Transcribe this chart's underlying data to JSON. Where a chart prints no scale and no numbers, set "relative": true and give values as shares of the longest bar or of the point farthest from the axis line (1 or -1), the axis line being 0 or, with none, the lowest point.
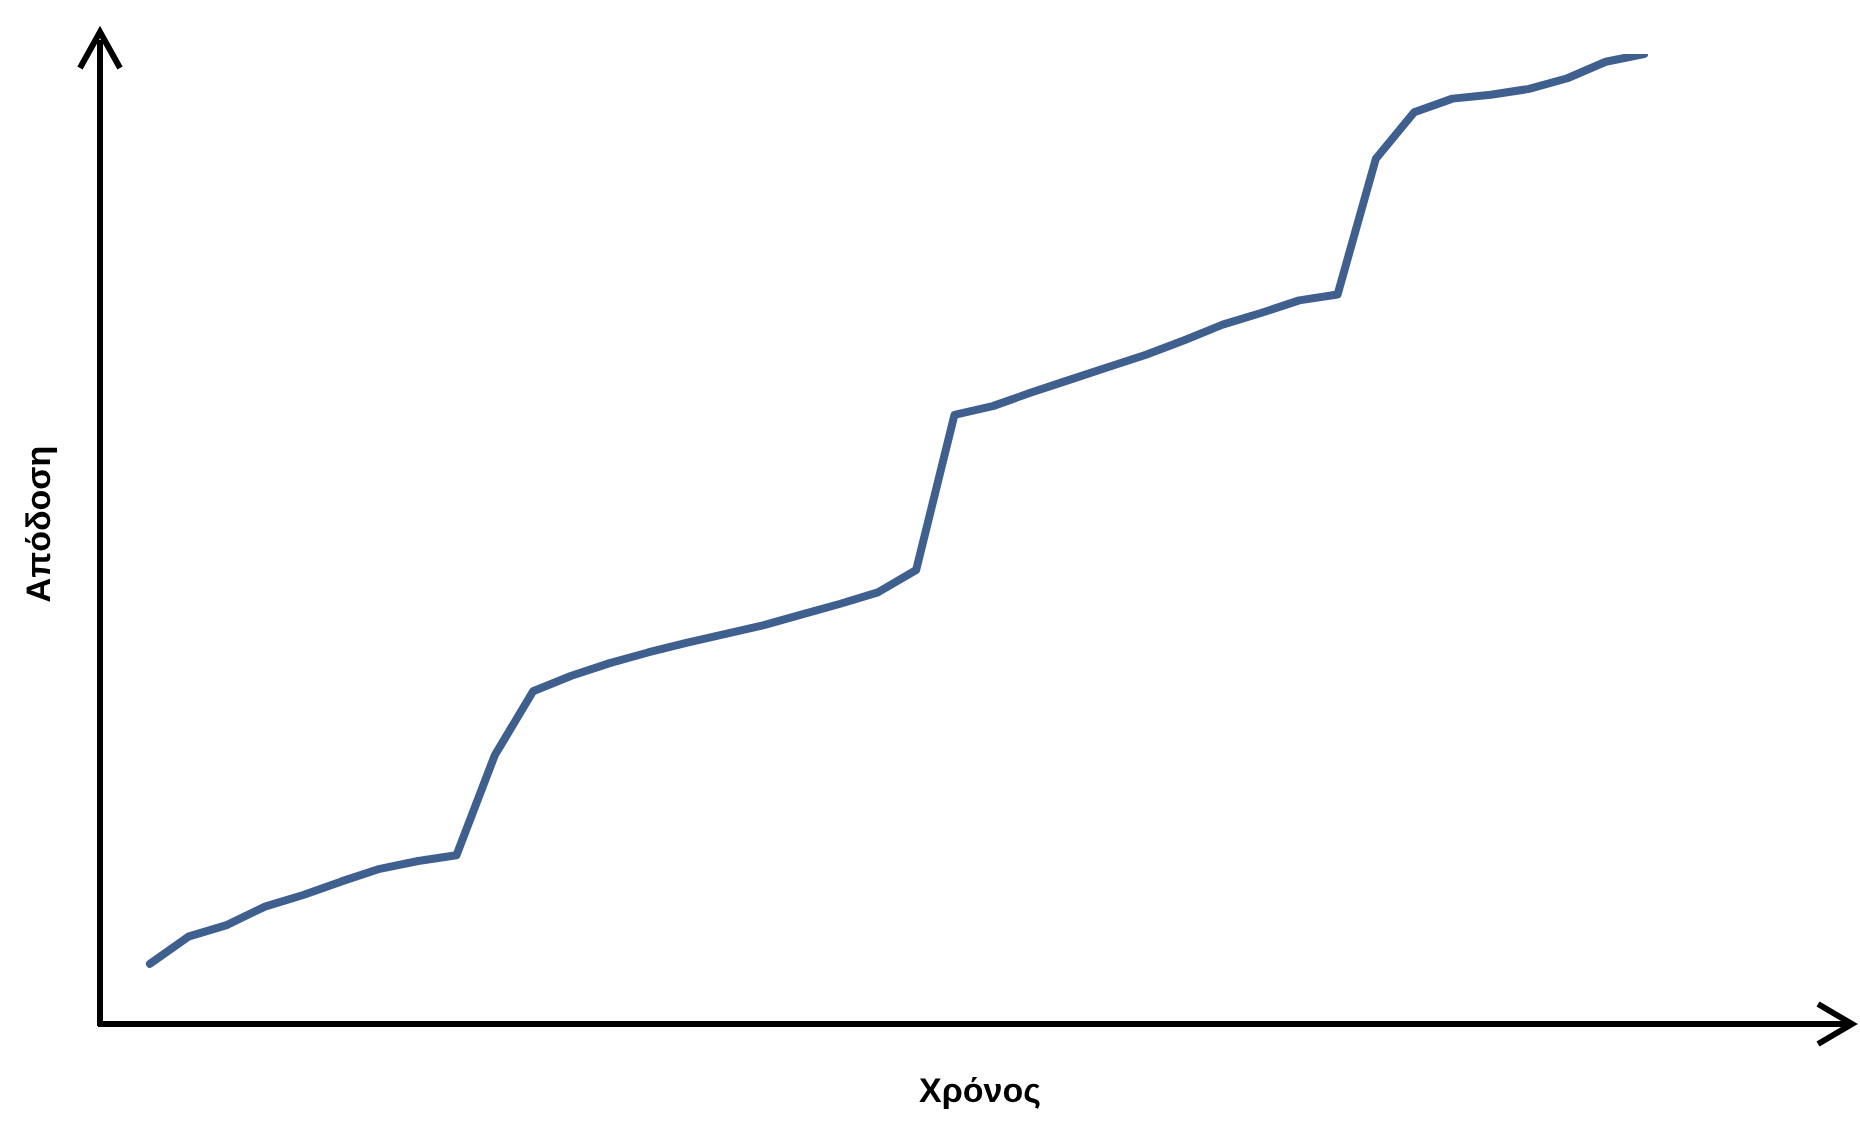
{
  "chart_data": {
    "type": "line",
    "relative": true,
    "xlabel": "Χρόνος",
    "ylabel": "Απόδοση",
    "categories": [
      null,
      null,
      null,
      null,
      null,
      null,
      null,
      null,
      null,
      null,
      null,
      null,
      null,
      null,
      null,
      null,
      null,
      null,
      null,
      null,
      null,
      null,
      null,
      null,
      null,
      null,
      null,
      null,
      null,
      null,
      null,
      null,
      null,
      null,
      null,
      null,
      null,
      null,
      null,
      null
    ],
    "series": [
      {
        "color": "#3f5f8f",
        "values": [
          0.062,
          0.09,
          0.102,
          0.121,
          0.133,
          0.147,
          0.16,
          0.168,
          0.174,
          0.277,
          0.343,
          0.359,
          0.372,
          0.383,
          0.393,
          0.402,
          0.411,
          0.422,
          0.433,
          0.445,
          0.468,
          0.628,
          0.637,
          0.651,
          0.664,
          0.677,
          0.69,
          0.705,
          0.721,
          0.733,
          0.746,
          0.752,
          0.892,
          0.94,
          0.954,
          0.958,
          0.964,
          0.975,
          0.992,
          1.0
        ]
      }
    ]
  }
}
